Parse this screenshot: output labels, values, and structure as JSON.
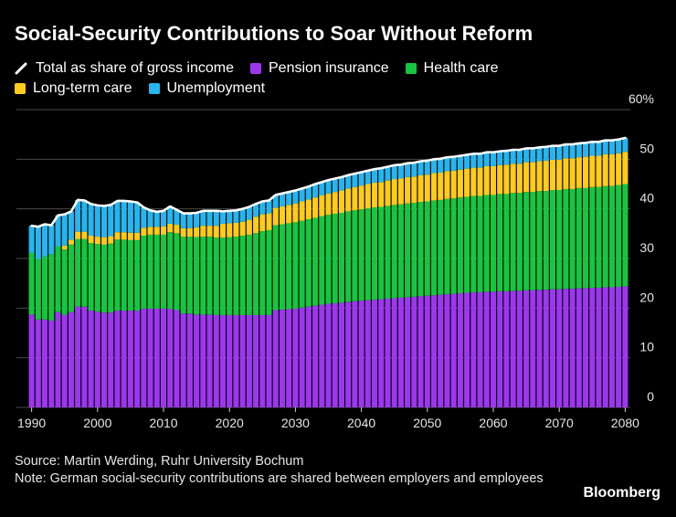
{
  "title": "Social-Security Contributions to Soar Without Reform",
  "legend": [
    {
      "label": "Total as share of gross income",
      "kind": "line",
      "color": "#ffffff"
    },
    {
      "label": "Pension insurance",
      "kind": "swatch",
      "color": "#9c37ee"
    },
    {
      "label": "Health care",
      "kind": "swatch",
      "color": "#16c640"
    },
    {
      "label": "Long-term care",
      "kind": "swatch",
      "color": "#ffcc1a"
    },
    {
      "label": "Unemployment",
      "kind": "swatch",
      "color": "#26b5ee"
    }
  ],
  "chart_data": {
    "type": "bar",
    "stacked": true,
    "title": "Social-Security Contributions to Soar Without Reform",
    "x": [
      1990,
      1991,
      1992,
      1993,
      1994,
      1995,
      1996,
      1997,
      1998,
      1999,
      2000,
      2001,
      2002,
      2003,
      2004,
      2005,
      2006,
      2007,
      2008,
      2009,
      2010,
      2011,
      2012,
      2013,
      2014,
      2015,
      2016,
      2017,
      2018,
      2019,
      2020,
      2021,
      2022,
      2023,
      2024,
      2025,
      2026,
      2027,
      2028,
      2029,
      2030,
      2031,
      2032,
      2033,
      2034,
      2035,
      2036,
      2037,
      2038,
      2039,
      2040,
      2041,
      2042,
      2043,
      2044,
      2045,
      2046,
      2047,
      2048,
      2049,
      2050,
      2051,
      2052,
      2053,
      2054,
      2055,
      2056,
      2057,
      2058,
      2059,
      2060,
      2061,
      2062,
      2063,
      2064,
      2065,
      2066,
      2067,
      2068,
      2069,
      2070,
      2071,
      2072,
      2073,
      2074,
      2075,
      2076,
      2077,
      2078,
      2079,
      2080
    ],
    "series": [
      {
        "name": "Pension insurance",
        "color": "#9c37ee",
        "values": [
          18.7,
          17.7,
          17.7,
          17.5,
          19.2,
          18.6,
          19.2,
          20.3,
          20.3,
          19.5,
          19.3,
          19.1,
          19.1,
          19.5,
          19.5,
          19.5,
          19.5,
          19.9,
          19.9,
          19.9,
          19.9,
          19.9,
          19.6,
          18.9,
          18.9,
          18.7,
          18.7,
          18.7,
          18.6,
          18.6,
          18.6,
          18.6,
          18.6,
          18.6,
          18.6,
          18.6,
          18.6,
          19.6,
          19.7,
          19.8,
          19.9,
          20.1,
          20.3,
          20.5,
          20.7,
          20.9,
          21.0,
          21.1,
          21.3,
          21.4,
          21.5,
          21.6,
          21.7,
          21.8,
          21.9,
          22.0,
          22.1,
          22.2,
          22.3,
          22.4,
          22.5,
          22.6,
          22.7,
          22.8,
          22.9,
          23.0,
          23.1,
          23.2,
          23.2,
          23.3,
          23.3,
          23.4,
          23.4,
          23.5,
          23.5,
          23.6,
          23.6,
          23.7,
          23.7,
          23.8,
          23.8,
          23.9,
          23.9,
          24.0,
          24.0,
          24.1,
          24.1,
          24.2,
          24.2,
          24.3,
          24.4
        ]
      },
      {
        "name": "Health care",
        "color": "#16c640",
        "values": [
          12.5,
          12.2,
          12.7,
          13.4,
          13.2,
          13.2,
          13.6,
          13.6,
          13.6,
          13.6,
          13.6,
          13.7,
          13.9,
          14.3,
          14.3,
          14.2,
          14.2,
          14.7,
          14.9,
          14.9,
          14.9,
          15.4,
          15.5,
          15.5,
          15.5,
          15.6,
          15.7,
          15.7,
          15.6,
          15.6,
          15.7,
          15.8,
          16.0,
          16.2,
          16.5,
          16.9,
          17.1,
          17.1,
          17.2,
          17.3,
          17.4,
          17.5,
          17.6,
          17.7,
          17.8,
          17.9,
          18.0,
          18.1,
          18.2,
          18.3,
          18.4,
          18.5,
          18.6,
          18.6,
          18.7,
          18.8,
          18.8,
          18.9,
          18.9,
          19.0,
          19.0,
          19.1,
          19.1,
          19.2,
          19.2,
          19.3,
          19.3,
          19.4,
          19.4,
          19.5,
          19.5,
          19.6,
          19.6,
          19.7,
          19.7,
          19.8,
          19.8,
          19.9,
          19.9,
          20.0,
          20.0,
          20.1,
          20.1,
          20.2,
          20.2,
          20.3,
          20.3,
          20.4,
          20.4,
          20.5,
          20.6
        ]
      },
      {
        "name": "Long-term care",
        "color": "#ffcc1a",
        "values": [
          0,
          0,
          0,
          0,
          0,
          0.8,
          1.0,
          1.5,
          1.5,
          1.5,
          1.5,
          1.5,
          1.5,
          1.5,
          1.5,
          1.5,
          1.5,
          1.6,
          1.6,
          1.6,
          1.7,
          1.7,
          1.7,
          1.7,
          1.7,
          2.0,
          2.2,
          2.2,
          2.4,
          2.8,
          2.8,
          2.8,
          2.8,
          3.0,
          3.3,
          3.4,
          3.4,
          3.5,
          3.6,
          3.7,
          3.8,
          3.9,
          4.0,
          4.1,
          4.2,
          4.3,
          4.4,
          4.5,
          4.6,
          4.7,
          4.8,
          4.9,
          5.0,
          5.0,
          5.1,
          5.2,
          5.2,
          5.3,
          5.3,
          5.4,
          5.4,
          5.5,
          5.5,
          5.6,
          5.6,
          5.6,
          5.7,
          5.7,
          5.7,
          5.8,
          5.8,
          5.8,
          5.9,
          5.9,
          5.9,
          6.0,
          6.0,
          6.0,
          6.1,
          6.1,
          6.1,
          6.2,
          6.2,
          6.2,
          6.3,
          6.3,
          6.3,
          6.4,
          6.4,
          6.4,
          6.5
        ]
      },
      {
        "name": "Unemployment",
        "color": "#26b5ee",
        "values": [
          5.4,
          6.5,
          6.5,
          5.8,
          6.3,
          6.3,
          5.7,
          6.4,
          6.3,
          6.4,
          6.3,
          6.3,
          6.3,
          6.3,
          6.3,
          6.3,
          6.1,
          4.1,
          3.3,
          3.0,
          3.1,
          3.5,
          3.0,
          3.0,
          3.0,
          2.9,
          3.0,
          3.0,
          3.0,
          2.5,
          2.5,
          2.5,
          2.6,
          2.6,
          2.6,
          2.6,
          2.6,
          2.6,
          2.6,
          2.6,
          2.6,
          2.6,
          2.6,
          2.7,
          2.7,
          2.7,
          2.7,
          2.7,
          2.7,
          2.7,
          2.7,
          2.7,
          2.7,
          2.8,
          2.8,
          2.8,
          2.8,
          2.8,
          2.8,
          2.8,
          2.8,
          2.8,
          2.8,
          2.8,
          2.8,
          2.8,
          2.8,
          2.8,
          2.8,
          2.8,
          2.8,
          2.8,
          2.8,
          2.8,
          2.8,
          2.8,
          2.8,
          2.8,
          2.8,
          2.8,
          2.8,
          2.8,
          2.8,
          2.8,
          2.8,
          2.8,
          2.8,
          2.8,
          2.8,
          2.8,
          2.8
        ]
      }
    ],
    "line_series": {
      "name": "Total as share of gross income",
      "color": "#ffffff"
    },
    "ylim": [
      0,
      60
    ],
    "yticks": [
      0,
      10,
      20,
      30,
      40,
      50,
      60
    ],
    "ytick_labels": [
      "0",
      "10",
      "20",
      "30",
      "40",
      "50",
      "60%"
    ],
    "xticks": [
      1990,
      2000,
      2010,
      2020,
      2030,
      2040,
      2050,
      2060,
      2070,
      2080
    ],
    "xtick_labels": [
      "1990",
      "2000",
      "2010",
      "2020",
      "2030",
      "2040",
      "2050",
      "2060",
      "2070",
      "2080"
    ],
    "grid": true,
    "xlabel": "",
    "ylabel": ""
  },
  "footer": {
    "source": "Source: Martin Werding, Ruhr University Bochum",
    "note": "Note: German social-security contributions are shared between employers and employees"
  },
  "brand": "Bloomberg"
}
